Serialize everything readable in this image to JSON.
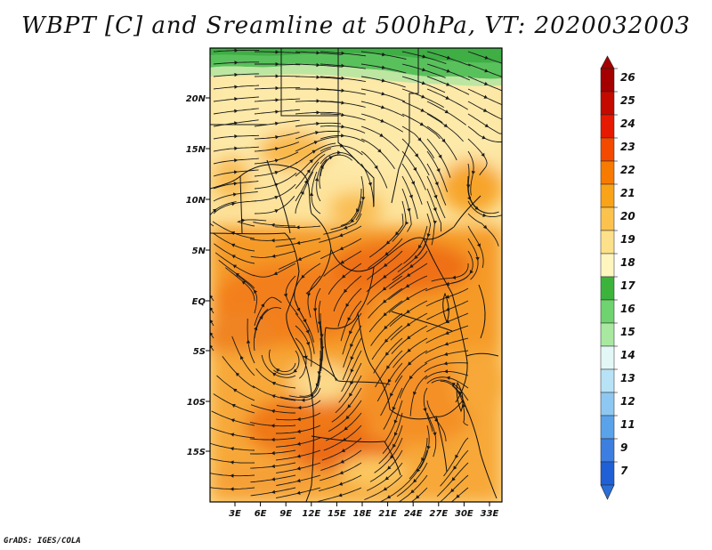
{
  "title": "WBPT [C] and Sreamline at 500hPa, VT: 2020032003",
  "credit": "GrADS: IGES/COLA",
  "map": {
    "lat_labels": [
      "20N",
      "15N",
      "10N",
      "5N",
      "EQ",
      "5S",
      "10S",
      "15S"
    ],
    "lon_labels": [
      "3E",
      "6E",
      "9E",
      "12E",
      "15E",
      "18E",
      "21E",
      "24E",
      "27E",
      "30E",
      "33E"
    ]
  },
  "colorbar": {
    "labels": [
      "26",
      "25",
      "24",
      "23",
      "22",
      "21",
      "20",
      "19",
      "18",
      "17",
      "16",
      "15",
      "14",
      "13",
      "12",
      "11",
      "9",
      "7"
    ],
    "colors": [
      "#a50000",
      "#c40a00",
      "#e61a00",
      "#f34a00",
      "#f77b00",
      "#f9a318",
      "#fbc24e",
      "#fde18a",
      "#fff6bf",
      "#3cb43c",
      "#6fd36f",
      "#a8e8a0",
      "#e4f7f7",
      "#b8e3f7",
      "#8ec8f2",
      "#5aa3ea",
      "#3c7fe0",
      "#2060d6"
    ],
    "top_arrow_color": "#a50000",
    "bottom_arrow_color": "#2a6fd6"
  }
}
